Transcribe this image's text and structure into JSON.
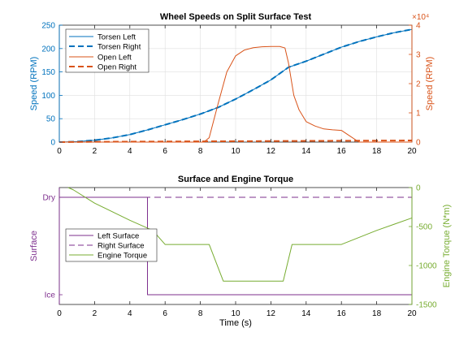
{
  "colors": {
    "blue": "#0072BD",
    "orange": "#D95319",
    "purple": "#7E2F8E",
    "green": "#77AC30",
    "axis": "#262626",
    "grid": "#dfdfdf"
  },
  "chart_data": [
    {
      "type": "line",
      "title": "Wheel Speeds on Split Surface Test",
      "xlabel": "",
      "ylabel": "Speed (RPM)",
      "ylabel_right": "Speed (RPM)",
      "exponent_right": "×10⁴",
      "xlim": [
        0,
        20
      ],
      "ylim": [
        0,
        250
      ],
      "ylim_right": [
        0,
        40000
      ],
      "xticks": [
        0,
        2,
        4,
        6,
        8,
        10,
        12,
        14,
        16,
        18,
        20
      ],
      "yticks": [
        0,
        50,
        100,
        150,
        200,
        250
      ],
      "yticks_right": [
        0,
        10000,
        20000,
        30000,
        40000
      ],
      "ytick_labels_right": [
        "0",
        "1",
        "2",
        "3",
        "4"
      ],
      "grid": true,
      "legend_position": "top-left",
      "series": [
        {
          "name": "Torsen Left",
          "axis": "left",
          "style": "solid",
          "color": "#0072BD",
          "x": [
            0,
            1,
            2,
            3,
            4,
            5,
            6,
            7,
            8,
            9,
            10,
            11,
            12,
            13,
            14,
            15,
            16,
            17,
            18,
            19,
            20
          ],
          "y": [
            0,
            1,
            4,
            9,
            16,
            26,
            37,
            48,
            60,
            74,
            92,
            112,
            133,
            160,
            173,
            188,
            203,
            215,
            225,
            234,
            241
          ]
        },
        {
          "name": "Torsen Right",
          "axis": "left",
          "style": "dashed",
          "color": "#0072BD",
          "x": [
            0,
            1,
            2,
            3,
            4,
            5,
            6,
            7,
            8,
            9,
            10,
            11,
            12,
            13,
            14,
            15,
            16,
            17,
            18,
            19,
            20
          ],
          "y": [
            0,
            1,
            4,
            9,
            16,
            26,
            37,
            48,
            60,
            74,
            92,
            112,
            133,
            160,
            173,
            188,
            203,
            215,
            225,
            234,
            241
          ]
        },
        {
          "name": "Open Left",
          "axis": "right",
          "style": "solid",
          "color": "#D95319",
          "x": [
            0,
            8.2,
            8.5,
            9.0,
            9.5,
            10.0,
            10.5,
            11.0,
            11.5,
            12.0,
            12.5,
            12.8,
            13.0,
            13.3,
            13.6,
            14.0,
            14.5,
            15.0,
            15.5,
            16.0,
            16.5,
            17.0,
            18.0,
            19.0,
            20.0
          ],
          "y": [
            0,
            0,
            1500,
            13000,
            24000,
            29500,
            31500,
            32300,
            32600,
            32700,
            32700,
            32200,
            27000,
            16000,
            11000,
            7000,
            5500,
            4500,
            4200,
            4000,
            2000,
            0,
            0,
            0,
            0
          ]
        },
        {
          "name": "Open Right",
          "axis": "right",
          "style": "dashed",
          "color": "#D95319",
          "x": [
            0,
            2,
            4,
            6,
            8,
            10,
            12,
            14,
            16,
            18,
            20
          ],
          "y": [
            0,
            100,
            150,
            200,
            250,
            300,
            350,
            400,
            450,
            500,
            550
          ]
        }
      ]
    },
    {
      "type": "line",
      "title": "Surface and Engine Torque",
      "xlabel": "Time (s)",
      "ylabel": "Surface",
      "ylabel_right": "Engine Torque (N*m)",
      "xlim": [
        0,
        20
      ],
      "ylim": [
        -0.1,
        1.1
      ],
      "ylim_right": [
        -1500,
        0
      ],
      "xticks": [
        0,
        2,
        4,
        6,
        8,
        10,
        12,
        14,
        16,
        18,
        20
      ],
      "categorical_yticks": [
        {
          "value": 0,
          "label": "Ice"
        },
        {
          "value": 1,
          "label": "Dry"
        }
      ],
      "yticks_right": [
        -1500,
        -1000,
        -500,
        0
      ],
      "grid": false,
      "legend_position": "center-left",
      "series": [
        {
          "name": "Left Surface",
          "axis": "left",
          "style": "solid",
          "color": "#7E2F8E",
          "x": [
            0,
            5,
            5,
            20
          ],
          "y": [
            1,
            1,
            0,
            0
          ]
        },
        {
          "name": "Right Surface",
          "axis": "left",
          "style": "dashed",
          "color": "#7E2F8E",
          "x": [
            0,
            20
          ],
          "y": [
            1,
            1
          ]
        },
        {
          "name": "Engine Torque",
          "axis": "right",
          "style": "solid",
          "color": "#77AC30",
          "x": [
            0.5,
            0.8,
            2,
            4,
            5.3,
            6,
            8.5,
            9.3,
            12.7,
            13.2,
            16,
            18,
            19,
            20
          ],
          "y": [
            0,
            -30,
            -200,
            -420,
            -550,
            -730,
            -730,
            -1200,
            -1200,
            -730,
            -730,
            -550,
            -470,
            -390
          ]
        }
      ]
    }
  ]
}
